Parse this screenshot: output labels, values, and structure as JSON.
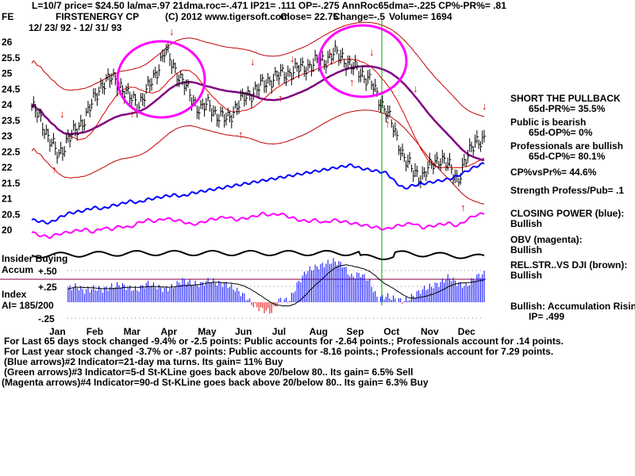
{
  "header": {
    "line1": "L=10/7  price= $24.50  la/ma=.97 21dma.roc=-.471 IP21= .111 OP=-.275 AnnRoc65dma=-.225 CP%-PR%=  .81",
    "ticker": "FE",
    "name": "FIRSTENERGY CP",
    "copyright": "(C) 2012 www.tigersoft.com",
    "close": "Close= 22.75",
    "change": "Change=-.5",
    "volume": "Volume=  1694",
    "range": "12/ 23/ 92 - 12/ 31/ 93"
  },
  "sidebar": {
    "signal": "SHORT THE PULLBACK",
    "pr": "65d-PR%= 35.5%",
    "public": "Public is bearish",
    "op": "65d-OP%= 0%",
    "pros": "Professionals are bullish",
    "cp": "65d-CP%= 80.1%",
    "cpvspr": "CP%vsPr%=  44.6%",
    "strength": "Strength Profess/Pub= .1",
    "closing_power": "CLOSING POWER (blue):",
    "closing_power_val": "Bullish",
    "obv": "OBV (magenta):",
    "obv_val": "Bullish",
    "relstr": "REL.STR..VS DJI (brown):",
    "relstr_val": "Bullish",
    "accum": "Bullish: Accumulation Rising",
    "ip": "IP=  .499"
  },
  "lower": {
    "insider": "Insider Buying",
    "accum": "Accum",
    "index": "Index",
    "ai": "AI= 185/200"
  },
  "notes": [
    "For Last 65 days stock changed -9.4% or -2.5 points:  Public accounts for -2.64 points.;  Professionals account for  .14 points.",
    "For Last year stock changed -3.7% or -.87 points:  Public accounts for -8.16 points.;  Professionals account for  7.29 points.",
    "(Blue arrows)#2 Indicator=21-day ma turns. Its gain= 11% Buy",
    "(Green arrows)#3 Indicator=5-d St-KLine goes back above 20/below 80.. Its gain= 6.5% Sell",
    "(Magenta arrows)#4 Indicator=90-d St-KLine goes back above 20/below 80.. Its gain= 6.3% Buy"
  ],
  "chart_data": {
    "type": "line",
    "title": "FIRSTENERGY CP",
    "x_labels": [
      "Jan",
      "Feb",
      "Mar",
      "Apr",
      "May",
      "Jun",
      "Jul",
      "Aug",
      "Sep",
      "Oct",
      "Nov",
      "Dec"
    ],
    "y_ticks": [
      "26",
      "25.5",
      "25",
      "24.5",
      "24",
      "23.5",
      "23",
      "22.5",
      "22",
      "21.5",
      "21",
      "20.5",
      "20"
    ],
    "ylim": [
      19.5,
      26.2
    ],
    "acc_ticks": [
      "+.50",
      "+.25",
      "-.25"
    ],
    "series": [
      {
        "name": "price",
        "values": [
          23.9,
          23.5,
          22.9,
          22.3,
          22.9,
          23.1,
          23.6,
          24.1,
          24.7,
          24.8,
          24.6,
          24.2,
          24.0,
          24.4,
          25.0,
          25.7,
          25.2,
          24.7,
          24.2,
          23.8,
          24.0,
          23.6,
          23.5,
          23.9,
          24.2,
          24.4,
          24.6,
          24.8,
          24.9,
          25.0,
          25.1,
          25.2,
          25.3,
          25.4,
          25.6,
          25.5,
          25.2,
          25.0,
          24.8,
          24.2,
          23.8,
          23.0,
          22.3,
          21.8,
          21.7,
          22.0,
          22.3,
          22.0,
          21.6,
          22.2,
          22.9,
          22.75
        ]
      },
      {
        "name": "closing_power",
        "values": [
          20.3,
          20.25,
          20.2,
          20.35,
          20.5,
          20.55,
          20.6,
          20.7,
          20.65,
          20.75,
          20.8,
          20.9,
          20.85,
          20.95,
          21.0,
          21.05,
          21.1,
          21.05,
          21.15,
          21.2,
          21.25,
          21.3,
          21.35,
          21.4,
          21.45,
          21.5,
          21.55,
          21.6,
          21.65,
          21.7,
          21.75,
          21.8,
          21.85,
          21.9,
          21.95,
          22.0,
          22.05,
          21.95,
          21.9,
          21.85,
          21.8,
          21.5,
          21.3,
          21.4,
          21.45,
          21.5,
          21.55,
          21.6,
          21.7,
          21.85,
          22.0,
          22.1
        ]
      },
      {
        "name": "obv",
        "values": [
          19.9,
          19.8,
          19.75,
          19.85,
          19.9,
          19.95,
          20.0,
          19.9,
          20.05,
          20.0,
          20.1,
          20.05,
          20.2,
          20.3,
          20.25,
          20.35,
          20.3,
          20.25,
          20.15,
          20.2,
          20.3,
          20.35,
          20.4,
          20.3,
          20.35,
          20.4,
          20.5,
          20.45,
          20.5,
          20.4,
          20.3,
          20.25,
          20.3,
          20.2,
          20.3,
          20.25,
          20.2,
          20.15,
          20.1,
          20.05,
          20.0,
          20.1,
          20.15,
          20.2,
          20.05,
          20.1,
          20.15,
          20.2,
          20.1,
          20.3,
          20.45,
          20.5
        ]
      },
      {
        "name": "accumulation",
        "values": [
          0.0,
          0.25,
          0.2,
          0.28,
          0.22,
          0.25,
          0.18,
          0.22,
          0.2,
          0.25,
          0.28,
          0.22,
          0.2,
          0.3,
          0.25,
          0.2,
          0.25,
          0.35,
          0.3,
          0.28,
          0.35,
          0.3,
          0.28,
          0.2,
          0.1,
          -0.05,
          -0.12,
          -0.15,
          0.05,
          0.02,
          0.3,
          0.5,
          0.55,
          0.6,
          0.65,
          0.6,
          0.4,
          0.45,
          0.35,
          0.05,
          0.1,
          0.05,
          0.02,
          0.1,
          0.2,
          0.25,
          0.3,
          0.4,
          0.3,
          0.25,
          0.4,
          0.45
        ]
      }
    ]
  }
}
